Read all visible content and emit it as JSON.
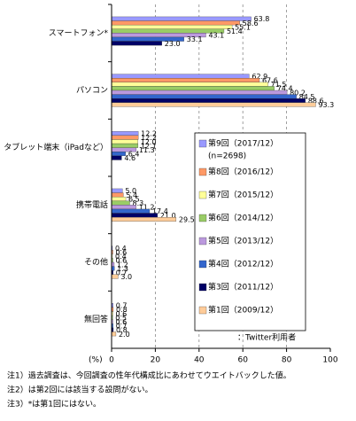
{
  "chart_data": {
    "type": "bar",
    "orientation": "horizontal",
    "categories": [
      "スマートフォン*",
      "パソコン",
      "タブレット端末（iPadなど）",
      "携帯電話",
      "その他",
      "無回答"
    ],
    "series": [
      {
        "name": "第9回（2017/12）",
        "color": "#9999ff",
        "values": [
          63.8,
          62.9,
          12.2,
          5.0,
          0.4,
          0.7
        ],
        "value_labels": [
          "63.8",
          "62.9",
          "12.2",
          "5.0",
          "0.4",
          "0.7"
        ]
      },
      {
        "name": "第8回（2016/12）",
        "color": "#ff9966",
        "values": [
          58.6,
          67.6,
          12.2,
          5.4,
          0.6,
          0.8
        ],
        "value_labels": [
          "58.6",
          "67.6",
          "12.2",
          "5.4",
          "0.6",
          "0.8"
        ]
      },
      {
        "name": "第7回（2015/12）",
        "color": "#ffff99",
        "values": [
          55.1,
          71.5,
          12.0,
          6.5,
          0.4,
          0.6
        ],
        "value_labels": [
          "55.1",
          "71.5",
          "12.0",
          "6.5",
          "0.4",
          "0.6"
        ]
      },
      {
        "name": "第6回（2014/12）",
        "color": "#99cc66",
        "values": [
          51.4,
          74.4,
          12.1,
          8.3,
          0.6,
          0.5
        ],
        "value_labels": [
          "51.4",
          "74.4",
          "12.1",
          "8.3",
          "0.6",
          "0.5"
        ]
      },
      {
        "name": "第5回（2013/12）",
        "color": "#bb99dd",
        "values": [
          43.1,
          80.2,
          11.3,
          11.2,
          1.2,
          0.6
        ],
        "value_labels": [
          "43.1",
          "80.2",
          "11.3",
          "11.2",
          "1.2",
          "0.6"
        ]
      },
      {
        "name": "第4回（2012/12）",
        "color": "#3366cc",
        "values": [
          33.1,
          84.5,
          6.4,
          17.4,
          1.3,
          0.7
        ],
        "value_labels": [
          "33.1",
          "84.5",
          "6.4",
          "17.4",
          "1.3",
          "0.7"
        ]
      },
      {
        "name": "第3回（2011/12）",
        "color": "#000066",
        "values": [
          23.0,
          88.6,
          4.6,
          21.0,
          0.7,
          0.8
        ],
        "value_labels": [
          "23.0",
          "88.6",
          "4.6",
          "21.0",
          "0.7",
          "0.8"
        ]
      },
      {
        "name": "第1回（2009/12）",
        "color": "#ffcc99",
        "values": [
          null,
          93.3,
          null,
          29.5,
          3.0,
          2.0
        ],
        "value_labels": [
          null,
          "93.3",
          null,
          "29.5",
          "3.0",
          "2.0"
        ]
      }
    ],
    "legend_note": "(n=2698)",
    "annotation": "：Twitter利用者",
    "xlabel": "(%)",
    "xlim": [
      0,
      100
    ],
    "xticks": [
      0,
      20,
      40,
      60,
      80,
      100
    ],
    "grid": true,
    "notes": [
      "注1）過去調査は、今回調査の性年代構成比にあわせてウエイトバックした値。",
      "注2）は第2回には該当する設問がない。",
      "注3）*は第1回にはない。"
    ]
  }
}
